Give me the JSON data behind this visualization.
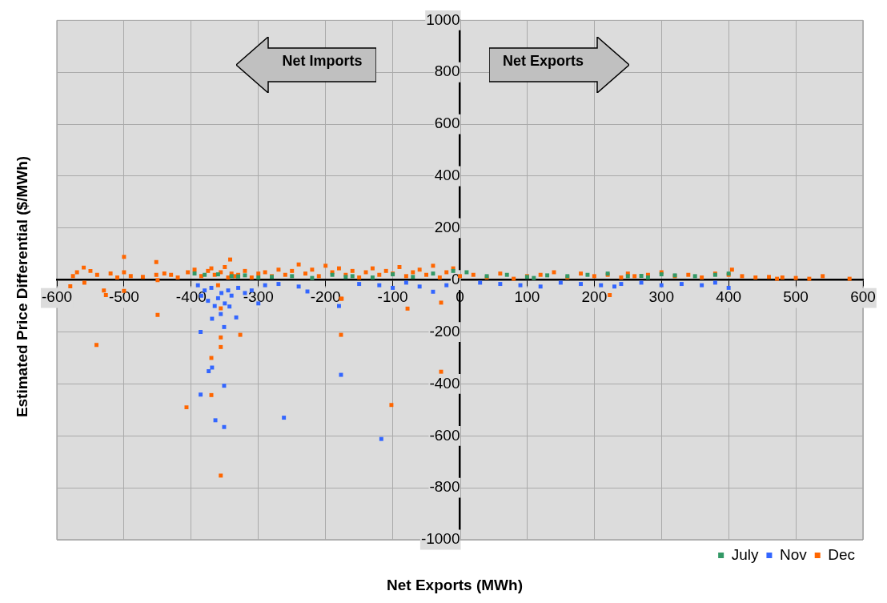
{
  "chart_data": {
    "type": "scatter",
    "xlabel": "Net Exports (MWh)",
    "ylabel": "Estimated Price Differential ($/MWh)",
    "annotations": [
      "Net Imports",
      "Net Exports"
    ],
    "xlim": [
      -600,
      600
    ],
    "ylim": [
      -1000,
      1000
    ],
    "xticks": [
      -600,
      -500,
      -400,
      -300,
      -200,
      -100,
      0,
      100,
      200,
      300,
      400,
      500,
      600
    ],
    "yticks": [
      -1000,
      -800,
      -600,
      -400,
      -200,
      0,
      200,
      400,
      600,
      800,
      1000
    ],
    "grid": true,
    "legend": "bottom right",
    "marker": "square",
    "series": [
      {
        "name": "July",
        "color": "#339966",
        "x": [
          -395,
          -380,
          -360,
          -340,
          -320,
          -300,
          -280,
          -250,
          -220,
          -190,
          -160,
          -130,
          -100,
          -70,
          -40,
          -10,
          10,
          40,
          70,
          100,
          130,
          160,
          190,
          220,
          250,
          280,
          300,
          320,
          350,
          380,
          400,
          -330,
          -170,
          110,
          270
        ],
        "values": [
          25,
          20,
          22,
          15,
          18,
          10,
          12,
          15,
          8,
          20,
          15,
          10,
          22,
          12,
          25,
          35,
          30,
          15,
          20,
          12,
          18,
          15,
          20,
          25,
          15,
          10,
          22,
          18,
          15,
          20,
          25,
          14,
          12,
          8,
          16
        ]
      },
      {
        "name": "Nov",
        "color": "#3366ff",
        "x": [
          -390,
          -385,
          -380,
          -375,
          -370,
          -365,
          -360,
          -355,
          -350,
          -345,
          -340,
          -330,
          -320,
          -310,
          -300,
          -290,
          -270,
          -240,
          -227,
          -180,
          -150,
          -120,
          -100,
          -80,
          -60,
          -40,
          -20,
          30,
          60,
          90,
          120,
          150,
          180,
          210,
          230,
          240,
          270,
          300,
          330,
          360,
          380,
          400,
          -386,
          -369,
          -351,
          -333,
          -343,
          -356,
          -374,
          -369,
          -351,
          -386,
          -364,
          -351,
          -262,
          -177,
          -117
        ],
        "values": [
          -20,
          -60,
          -40,
          -80,
          -30,
          -100,
          -70,
          -50,
          -90,
          -40,
          -60,
          -30,
          -50,
          -40,
          -90,
          -20,
          -15,
          -25,
          -44,
          -100,
          -15,
          -20,
          -30,
          -10,
          -25,
          -45,
          -20,
          -10,
          -15,
          -20,
          -25,
          -10,
          -15,
          -20,
          -25,
          -15,
          -10,
          -20,
          -15,
          -20,
          -10,
          -30,
          -200,
          -149,
          -181,
          -144,
          -102,
          -131,
          -351,
          -337,
          -407,
          -441,
          -540,
          -566,
          -530,
          -365,
          -612
        ]
      },
      {
        "name": "Dec",
        "color": "#ff6600",
        "x": [
          -580,
          -576,
          -570,
          -560,
          -559,
          -550,
          -541,
          -540,
          -530,
          -527,
          -520,
          -510,
          -500,
          -500,
          -500,
          -490,
          -472,
          -452,
          -452,
          -450,
          -440,
          -430,
          -420,
          -405,
          -395,
          -385,
          -375,
          -370,
          -365,
          -360,
          -356,
          -350,
          -345,
          -340,
          -342,
          -335,
          -330,
          -320,
          -310,
          -300,
          -290,
          -280,
          -270,
          -260,
          -250,
          -240,
          -230,
          -220,
          -210,
          -200,
          -190,
          -180,
          -170,
          -160,
          -150,
          -140,
          -130,
          -120,
          -110,
          -100,
          -90,
          -80,
          -70,
          -60,
          -50,
          -40,
          -30,
          -28,
          -28,
          -20,
          -10,
          0,
          20,
          40,
          60,
          80,
          100,
          120,
          140,
          160,
          180,
          200,
          220,
          223,
          240,
          250,
          260,
          280,
          300,
          320,
          340,
          360,
          380,
          400,
          405,
          420,
          440,
          460,
          472,
          480,
          500,
          520,
          540,
          580,
          -450,
          -407,
          -370,
          -370,
          -356,
          -356,
          -356,
          -356,
          -327,
          -177,
          -177,
          -102,
          -176,
          -78
        ],
        "values": [
          -24,
          15,
          30,
          48,
          -10,
          35,
          -250,
          20,
          -40,
          -58,
          25,
          10,
          89,
          -42,
          30,
          15,
          12,
          69,
          20,
          0,
          25,
          20,
          10,
          30,
          40,
          15,
          35,
          45,
          20,
          -20,
          30,
          50,
          10,
          25,
          79,
          15,
          20,
          35,
          10,
          25,
          30,
          15,
          40,
          20,
          35,
          60,
          25,
          40,
          15,
          55,
          30,
          45,
          20,
          35,
          10,
          30,
          45,
          20,
          35,
          25,
          50,
          15,
          30,
          40,
          20,
          55,
          10,
          -353,
          -87,
          30,
          45,
          15,
          20,
          10,
          25,
          5,
          15,
          20,
          30,
          10,
          25,
          15,
          20,
          -58,
          10,
          25,
          15,
          20,
          30,
          15,
          20,
          10,
          25,
          20,
          40,
          15,
          10,
          12,
          5,
          10,
          8,
          5,
          15,
          5,
          -134,
          -490,
          -300,
          -443,
          -109,
          -221,
          -258,
          -753,
          -211,
          -211,
          -72,
          -481,
          -72,
          -110
        ]
      }
    ]
  }
}
